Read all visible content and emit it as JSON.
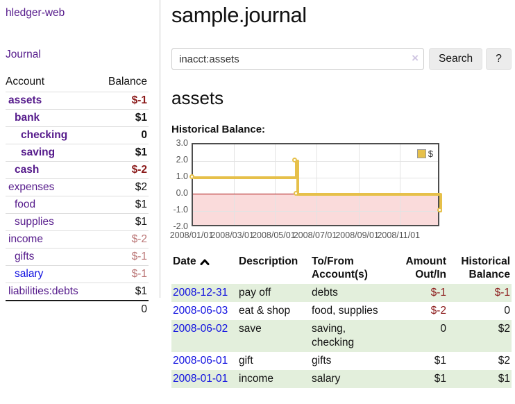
{
  "theme": {
    "purple_link": "#551a8b",
    "blue_link": "#0f0fe0",
    "negative_strong": "#8b1a1a",
    "negative_faded": "#ba7575",
    "row_stripe_green": "#e3efdc",
    "series_gold": "#e6c04a",
    "chart_negative_region": "#fadbdb",
    "chart_zero_line": "#a40000",
    "chart_grid": "#e3e3e3"
  },
  "sidebar": {
    "brand": "hledger-web",
    "journal_link": "Journal",
    "account_col": "Account",
    "balance_col": "Balance",
    "accounts": [
      {
        "name": "assets",
        "indent": 0,
        "bold": true,
        "blue": false,
        "balance": "$-1",
        "balance_style": "neg-strong"
      },
      {
        "name": "bank",
        "indent": 1,
        "bold": true,
        "blue": false,
        "balance": "$1",
        "balance_style": "pos"
      },
      {
        "name": "checking",
        "indent": 2,
        "bold": true,
        "blue": false,
        "balance": "0",
        "balance_style": "pos"
      },
      {
        "name": "saving",
        "indent": 2,
        "bold": true,
        "blue": false,
        "balance": "$1",
        "balance_style": "pos"
      },
      {
        "name": "cash",
        "indent": 1,
        "bold": true,
        "blue": false,
        "balance": "$-2",
        "balance_style": "neg-strong"
      },
      {
        "name": "expenses",
        "indent": 0,
        "bold": false,
        "blue": false,
        "balance": "$2",
        "balance_style": "pos-plain"
      },
      {
        "name": "food",
        "indent": 1,
        "bold": false,
        "blue": false,
        "balance": "$1",
        "balance_style": "pos-plain"
      },
      {
        "name": "supplies",
        "indent": 1,
        "bold": false,
        "blue": false,
        "balance": "$1",
        "balance_style": "pos-plain"
      },
      {
        "name": "income",
        "indent": 0,
        "bold": false,
        "blue": false,
        "balance": "$-2",
        "balance_style": "neg-faded"
      },
      {
        "name": "gifts",
        "indent": 1,
        "bold": false,
        "blue": false,
        "balance": "$-1",
        "balance_style": "neg-faded"
      },
      {
        "name": "salary",
        "indent": 1,
        "bold": false,
        "blue": true,
        "balance": "$-1",
        "balance_style": "neg-faded"
      },
      {
        "name": "liabilities:debts",
        "indent": 0,
        "bold": false,
        "blue": false,
        "balance": "$1",
        "balance_style": "pos-plain"
      }
    ],
    "total": "0"
  },
  "main": {
    "title": "sample.journal",
    "search": {
      "value": "inacct:assets",
      "clear": "×",
      "search_button": "Search",
      "help_button": "?"
    },
    "account_heading": "assets",
    "chart_title": "Historical Balance:"
  },
  "chart_data": {
    "type": "line",
    "step": true,
    "title": "Historical Balance:",
    "legend": {
      "position": "top-right",
      "label": "$"
    },
    "xlim": [
      "2008-01-01",
      "2008-12-31"
    ],
    "ylim": [
      -2,
      3
    ],
    "grid": true,
    "yticks": [
      3.0,
      2.0,
      1.0,
      0.0,
      -1.0,
      -2.0
    ],
    "ytick_labels": [
      "3.0",
      "2.0",
      "1.0",
      "0.0",
      "-1.0",
      "-2.0"
    ],
    "xticks": [
      "2008-01-01",
      "2008-03-01",
      "2008-05-01",
      "2008-07-01",
      "2008-09-01",
      "2008-11-01"
    ],
    "xtick_labels": [
      "2008/01/01",
      "2008/03/01",
      "2008/05/01",
      "2008/07/01",
      "2008/09/01",
      "2008/11/01"
    ],
    "series": [
      {
        "name": "$",
        "points": [
          {
            "x": "2008-01-01",
            "y": 1
          },
          {
            "x": "2008-06-01",
            "y": 2
          },
          {
            "x": "2008-06-03",
            "y": 0
          },
          {
            "x": "2008-12-31",
            "y": -1
          }
        ]
      }
    ]
  },
  "register": {
    "columns": [
      "Date",
      "Description",
      "To/From Account(s)",
      "Amount Out/In",
      "Historical Balance"
    ],
    "rows": [
      {
        "date": "2008-12-31",
        "description": "pay off",
        "accounts": "debts",
        "amount": "$-1",
        "amount_negative": true,
        "balance": "$-1",
        "balance_negative": true,
        "stripe": true
      },
      {
        "date": "2008-06-03",
        "description": "eat & shop",
        "accounts": "food, supplies",
        "amount": "$-2",
        "amount_negative": true,
        "balance": "0",
        "balance_negative": false,
        "stripe": false
      },
      {
        "date": "2008-06-02",
        "description": "save",
        "accounts": "saving, checking",
        "amount": "0",
        "amount_negative": false,
        "balance": "$2",
        "balance_negative": false,
        "stripe": true
      },
      {
        "date": "2008-06-01",
        "description": "gift",
        "accounts": "gifts",
        "amount": "$1",
        "amount_negative": false,
        "balance": "$2",
        "balance_negative": false,
        "stripe": false
      },
      {
        "date": "2008-01-01",
        "description": "income",
        "accounts": "salary",
        "amount": "$1",
        "amount_negative": false,
        "balance": "$1",
        "balance_negative": false,
        "stripe": true
      }
    ]
  }
}
